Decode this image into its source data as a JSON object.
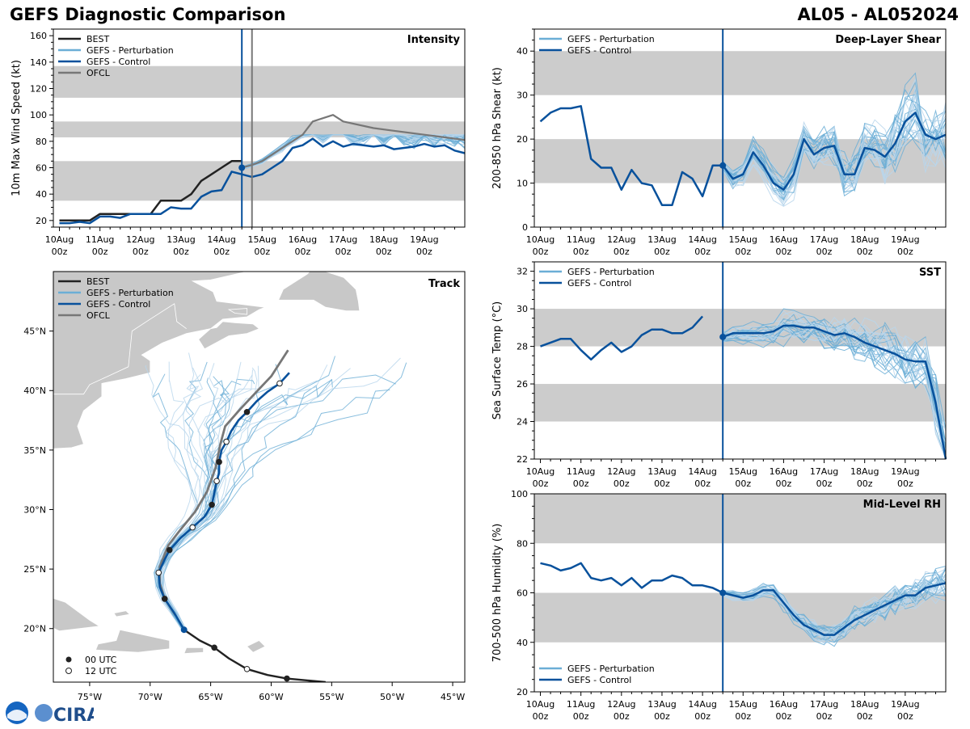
{
  "header": {
    "title": "GEFS Diagnostic Comparison",
    "storm_id": "AL05 - AL052024"
  },
  "time_axis": {
    "labels": [
      "10Aug",
      "11Aug",
      "12Aug",
      "13Aug",
      "14Aug",
      "15Aug",
      "16Aug",
      "17Aug",
      "18Aug",
      "19Aug"
    ],
    "sublabel": "00z",
    "current_day": 4.5
  },
  "colors": {
    "best": "#222222",
    "pert": "#6baed6",
    "pert_light": "#b8d6ec",
    "control": "#08519c",
    "ofcl": "#777777",
    "band": "#cccccc",
    "land": "#c8c8c8"
  },
  "legend": {
    "best": "BEST",
    "pert": "GEFS - Perturbation",
    "control": "GEFS - Control",
    "ofcl": "OFCL",
    "utc00": "00 UTC",
    "utc12": "12 UTC"
  },
  "logo": {
    "text": "CIRA"
  },
  "chart_data": [
    {
      "id": "intensity",
      "type": "line",
      "title": "Intensity",
      "ylabel": "10m Max Wind Speed (kt)",
      "ylim": [
        15,
        165
      ],
      "yticks": [
        20,
        40,
        60,
        80,
        100,
        120,
        140,
        160
      ],
      "bands": [
        [
          35,
          65
        ],
        [
          83,
          95
        ],
        [
          113,
          137
        ]
      ],
      "series": [
        {
          "name": "BEST",
          "x": [
            0,
            0.25,
            0.5,
            0.75,
            1,
            1.25,
            1.5,
            1.75,
            2,
            2.25,
            2.5,
            2.75,
            3,
            3.25,
            3.5,
            3.75,
            4,
            4.25,
            4.5
          ],
          "values": [
            20,
            20,
            20,
            20,
            25,
            25,
            25,
            25,
            25,
            25,
            35,
            35,
            35,
            40,
            50,
            55,
            60,
            65,
            65
          ]
        },
        {
          "name": "GEFS - Control",
          "x": [
            0,
            0.25,
            0.5,
            0.75,
            1,
            1.25,
            1.5,
            1.75,
            2,
            2.25,
            2.5,
            2.75,
            3,
            3.25,
            3.5,
            3.75,
            4,
            4.25,
            4.5,
            4.75,
            5,
            5.25,
            5.5,
            5.75,
            6,
            6.25,
            6.5,
            6.75,
            7,
            7.25,
            7.5,
            7.75,
            8,
            8.25,
            8.5,
            8.75,
            9,
            9.25,
            9.5,
            9.75,
            10
          ],
          "values": [
            18,
            18,
            19,
            18,
            23,
            23,
            22,
            25,
            25,
            25,
            25,
            30,
            29,
            29,
            38,
            42,
            43,
            57,
            55,
            53,
            55,
            60,
            65,
            75,
            77,
            82,
            76,
            80,
            76,
            78,
            77,
            76,
            77,
            74,
            75,
            76,
            78,
            76,
            77,
            73,
            71
          ]
        },
        {
          "name": "OFCL",
          "x": [
            4.5,
            4.75,
            5,
            5.25,
            5.5,
            6,
            6.25,
            6.75,
            7,
            7.75,
            8.25,
            9,
            9.5,
            10
          ],
          "values": [
            60,
            62,
            65,
            70,
            75,
            85,
            95,
            100,
            95,
            90,
            88,
            85,
            83,
            81
          ]
        }
      ],
      "perturbation_count": 30,
      "perturbation_range": [
        55,
        85
      ]
    },
    {
      "id": "shear",
      "type": "line",
      "title": "Deep-Layer Shear",
      "ylabel": "200-850 hPa Shear (kt)",
      "ylim": [
        0,
        45
      ],
      "yticks": [
        0,
        10,
        20,
        30,
        40
      ],
      "bands": [
        [
          10,
          20
        ],
        [
          30,
          40
        ]
      ],
      "series": [
        {
          "name": "GEFS - Control",
          "x": [
            0,
            0.25,
            0.5,
            0.75,
            1,
            1.25,
            1.5,
            1.75,
            2,
            2.25,
            2.5,
            2.75,
            3,
            3.25,
            3.5,
            3.75,
            4,
            4.25,
            4.5,
            4.75,
            5,
            5.25,
            5.5,
            5.75,
            6,
            6.25,
            6.5,
            6.75,
            7,
            7.25,
            7.5,
            7.75,
            8,
            8.25,
            8.5,
            8.75,
            9,
            9.25,
            9.5,
            9.75,
            10
          ],
          "values": [
            24,
            26,
            27,
            27,
            27.5,
            15.5,
            13.5,
            13.5,
            8.5,
            13,
            10,
            9.5,
            5,
            5,
            12.5,
            11,
            7,
            14,
            14,
            11,
            12,
            17,
            14,
            10,
            8.5,
            12,
            20,
            16.5,
            18,
            18.5,
            12,
            12,
            18,
            17.5,
            16,
            19,
            24,
            26,
            21,
            20,
            21
          ]
        }
      ],
      "perturbation_count": 30,
      "perturbation_range": [
        3,
        42
      ]
    },
    {
      "id": "sst",
      "type": "line",
      "title": "SST",
      "ylabel": "Sea Surface Temp (°C)",
      "ylim": [
        22,
        32.5
      ],
      "yticks": [
        22,
        24,
        26,
        28,
        30,
        32
      ],
      "bands": [
        [
          24,
          26
        ],
        [
          28,
          30
        ]
      ],
      "series": [
        {
          "name": "GEFS - Control (pre)",
          "x": [
            0,
            0.25,
            0.5,
            0.75,
            1,
            1.25,
            1.5,
            1.75,
            2,
            2.25,
            2.5,
            2.75,
            3,
            3.25,
            3.5,
            3.75,
            4
          ],
          "values": [
            28,
            28.2,
            28.4,
            28.4,
            27.8,
            27.3,
            27.8,
            28.2,
            27.7,
            28,
            28.6,
            28.9,
            28.9,
            28.7,
            28.7,
            29,
            29.6
          ]
        },
        {
          "name": "GEFS - Control",
          "x": [
            4.5,
            4.75,
            5,
            5.25,
            5.5,
            5.75,
            6,
            6.25,
            6.5,
            6.75,
            7,
            7.25,
            7.5,
            7.75,
            8,
            8.25,
            8.5,
            8.75,
            9,
            9.25,
            9.5,
            9.75,
            10
          ],
          "values": [
            28.5,
            28.7,
            28.7,
            28.7,
            28.7,
            28.8,
            29.1,
            29.1,
            29,
            29,
            28.8,
            28.6,
            28.7,
            28.5,
            28.2,
            28,
            27.8,
            27.6,
            27.3,
            27.2,
            27.2,
            25,
            22
          ]
        }
      ],
      "perturbation_count": 30,
      "perturbation_range": [
        22,
        30
      ]
    },
    {
      "id": "rh",
      "type": "line",
      "title": "Mid-Level RH",
      "ylabel": "700-500 hPa Humidity (%)",
      "ylim": [
        20,
        100
      ],
      "yticks": [
        20,
        40,
        60,
        80,
        100
      ],
      "bands": [
        [
          40,
          60
        ],
        [
          80,
          100
        ]
      ],
      "series": [
        {
          "name": "GEFS - Control",
          "x": [
            0,
            0.25,
            0.5,
            0.75,
            1,
            1.25,
            1.5,
            1.75,
            2,
            2.25,
            2.5,
            2.75,
            3,
            3.25,
            3.5,
            3.75,
            4,
            4.25,
            4.5,
            4.75,
            5,
            5.25,
            5.5,
            5.75,
            6,
            6.25,
            6.5,
            6.75,
            7,
            7.25,
            7.5,
            7.75,
            8,
            8.25,
            8.5,
            8.75,
            9,
            9.25,
            9.5,
            9.75,
            10
          ],
          "values": [
            72,
            71,
            69,
            70,
            72,
            66,
            65,
            66,
            63,
            66,
            62,
            65,
            65,
            67,
            66,
            63,
            63,
            62,
            60,
            59,
            58,
            59,
            61,
            61,
            56,
            51,
            47,
            45,
            43,
            43,
            46,
            49,
            51,
            53,
            55,
            57,
            59,
            59,
            62,
            63,
            64
          ]
        }
      ],
      "perturbation_count": 30,
      "perturbation_range": [
        38,
        76
      ]
    },
    {
      "id": "track",
      "type": "scatter",
      "title": "Track",
      "xlim": [
        -78,
        -44
      ],
      "ylim": [
        15.5,
        50
      ],
      "xticks": [
        "75°W",
        "70°W",
        "65°W",
        "60°W",
        "55°W",
        "50°W",
        "45°W"
      ],
      "xtick_values": [
        -75,
        -70,
        -65,
        -60,
        -55,
        -50,
        -45
      ],
      "yticks": [
        "20°N",
        "25°N",
        "30°N",
        "35°N",
        "40°N",
        "45°N"
      ],
      "ytick_values": [
        20,
        25,
        30,
        35,
        40,
        45
      ],
      "best": [
        [
          -55.5,
          15.5
        ],
        [
          -58.7,
          15.8
        ],
        [
          -60.3,
          16.1
        ],
        [
          -62,
          16.6
        ],
        [
          -63.5,
          17.5
        ],
        [
          -64.7,
          18.4
        ],
        [
          -65.9,
          19
        ],
        [
          -67.2,
          19.9
        ]
      ],
      "best_00utc": [
        [
          -58.7,
          15.8
        ],
        [
          -64.7,
          18.4
        ]
      ],
      "best_12utc": [
        [
          -62,
          16.6
        ]
      ],
      "control": [
        [
          -67.2,
          19.9
        ],
        [
          -68,
          21.3
        ],
        [
          -68.8,
          22.5
        ],
        [
          -69.2,
          23.5
        ],
        [
          -69.3,
          24.7
        ],
        [
          -68.8,
          25.8
        ],
        [
          -68.4,
          26.6
        ],
        [
          -67.5,
          27.6
        ],
        [
          -66.5,
          28.5
        ],
        [
          -65.5,
          29.4
        ],
        [
          -64.9,
          30.4
        ],
        [
          -64.7,
          31.4
        ],
        [
          -64.5,
          32.4
        ],
        [
          -64.3,
          33.1
        ],
        [
          -64.3,
          34
        ],
        [
          -64.1,
          35
        ],
        [
          -63.7,
          35.7
        ],
        [
          -63.3,
          36.6
        ],
        [
          -62.7,
          37.5
        ],
        [
          -62,
          38.2
        ],
        [
          -61.2,
          39.1
        ],
        [
          -60.3,
          39.9
        ],
        [
          -59.3,
          40.6
        ],
        [
          -58.5,
          41.5
        ]
      ],
      "control_00utc": [
        [
          -68.8,
          22.5
        ],
        [
          -68.4,
          26.6
        ],
        [
          -64.9,
          30.4
        ],
        [
          -64.3,
          34
        ],
        [
          -62,
          38.2
        ]
      ],
      "control_12utc": [
        [
          -69.3,
          24.7
        ],
        [
          -66.5,
          28.5
        ],
        [
          -64.5,
          32.4
        ],
        [
          -63.7,
          35.7
        ],
        [
          -59.3,
          40.6
        ]
      ],
      "ofcl": [
        [
          -67.9,
          21.1
        ],
        [
          -68.8,
          22.5
        ],
        [
          -69.2,
          23.8
        ],
        [
          -69.2,
          25.2
        ],
        [
          -68.5,
          27
        ],
        [
          -67.5,
          28.3
        ],
        [
          -66.3,
          29.8
        ],
        [
          -65.3,
          31.5
        ],
        [
          -64.6,
          33.5
        ],
        [
          -64.2,
          35.5
        ],
        [
          -63.8,
          37
        ],
        [
          -62.5,
          38.5
        ],
        [
          -61.3,
          39.8
        ],
        [
          -60,
          41.2
        ],
        [
          -58.6,
          43.4
        ]
      ],
      "perturbation_count": 30
    }
  ]
}
